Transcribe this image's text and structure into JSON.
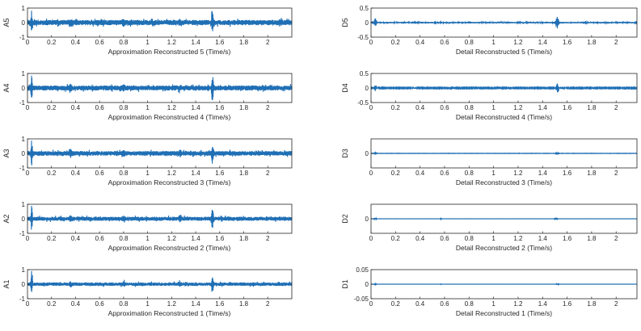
{
  "chart_data": [
    {
      "type": "line",
      "column": "left",
      "ylabel": "A5",
      "xlabel": "Approximation Reconstructed 5   (Time/s)",
      "xlim": [
        0,
        2.2
      ],
      "ylim": [
        -1,
        1
      ],
      "xticks": [
        "0",
        "0.2",
        "0.4",
        "0.6",
        "0.8",
        "1",
        "1.2",
        "1.4",
        "1.6",
        "1.8",
        "2"
      ],
      "yticks": [
        "-1",
        "0",
        "1"
      ]
    },
    {
      "type": "line",
      "column": "left",
      "ylabel": "A4",
      "xlabel": "Approximation Reconstructed 4   (Time/s)",
      "xlim": [
        0,
        2.2
      ],
      "ylim": [
        -1,
        1
      ],
      "xticks": [
        "0",
        "0.2",
        "0.4",
        "0.6",
        "0.8",
        "1",
        "1.2",
        "1.4",
        "1.6",
        "1.8",
        "2"
      ],
      "yticks": [
        "-1",
        "0",
        "1"
      ]
    },
    {
      "type": "line",
      "column": "left",
      "ylabel": "A3",
      "xlabel": "Approximation Reconstructed 3   (Time/s)",
      "xlim": [
        0,
        2.2
      ],
      "ylim": [
        -1,
        1
      ],
      "xticks": [
        "0",
        "0.2",
        "0.4",
        "0.6",
        "0.8",
        "1",
        "1.2",
        "1.4",
        "1.6",
        "1.8",
        "2"
      ],
      "yticks": [
        "-1",
        "0",
        "1"
      ]
    },
    {
      "type": "line",
      "column": "left",
      "ylabel": "A2",
      "xlabel": "Approximation Reconstructed 2   (Time/s)",
      "xlim": [
        0,
        2.2
      ],
      "ylim": [
        -1,
        1
      ],
      "xticks": [
        "0",
        "0.2",
        "0.4",
        "0.6",
        "0.8",
        "1",
        "1.2",
        "1.4",
        "1.6",
        "1.8",
        "2"
      ],
      "yticks": [
        "-1",
        "0",
        "1"
      ]
    },
    {
      "type": "line",
      "column": "left",
      "ylabel": "A1",
      "xlabel": "Approximation Reconstructed 1   (Time/s)",
      "xlim": [
        0,
        2.2
      ],
      "ylim": [
        -1,
        1
      ],
      "xticks": [
        "0",
        "0.2",
        "0.4",
        "0.6",
        "0.8",
        "1",
        "1.2",
        "1.4",
        "1.6",
        "1.8",
        "2"
      ],
      "yticks": [
        "-1",
        "0",
        "1"
      ]
    },
    {
      "type": "line",
      "column": "right",
      "ylabel": "D5",
      "xlabel": "Detail Reconstructed 5   (Time/s)",
      "xlim": [
        0,
        2.17
      ],
      "ylim": [
        -0.5,
        0.5
      ],
      "xticks": [
        "0",
        "0.2",
        "0.4",
        "0.6",
        "0.8",
        "1",
        "1.2",
        "1.4",
        "1.6",
        "1.8",
        "2"
      ],
      "yticks": [
        "-0.5",
        "0",
        "0.5"
      ]
    },
    {
      "type": "line",
      "column": "right",
      "ylabel": "D4",
      "xlabel": "Detail Reconstructed 4   (Time/s)",
      "xlim": [
        0,
        2.17
      ],
      "ylim": [
        -0.5,
        0.5
      ],
      "xticks": [
        "0",
        "0.2",
        "0.4",
        "0.6",
        "0.8",
        "1",
        "1.2",
        "1.4",
        "1.6",
        "1.8",
        "2"
      ],
      "yticks": [
        "-0.5",
        "0",
        "0.5"
      ]
    },
    {
      "type": "line",
      "column": "right",
      "ylabel": "D3",
      "xlabel": "Detail Reconstructed 3   (Time/s)",
      "xlim": [
        0,
        2.17
      ],
      "ylim": [
        -0.1,
        0.1
      ],
      "xticks": [
        "0",
        "0.2",
        "0.4",
        "0.6",
        "0.8",
        "1",
        "1.2",
        "1.4",
        "1.6",
        "1.8",
        "2"
      ],
      "yticks": [
        "0"
      ]
    },
    {
      "type": "line",
      "column": "right",
      "ylabel": "D2",
      "xlabel": "Detail Reconstructed 2   (Time/s)",
      "xlim": [
        0,
        2.17
      ],
      "ylim": [
        -0.1,
        0.1
      ],
      "xticks": [
        "0",
        "0.2",
        "0.4",
        "0.6",
        "0.8",
        "1",
        "1.2",
        "1.4",
        "1.6",
        "1.8",
        "2"
      ],
      "yticks": [
        "0"
      ]
    },
    {
      "type": "line",
      "column": "right",
      "ylabel": "D1",
      "xlabel": "Detail Reconstructed 1   (Time/s)",
      "xlim": [
        0,
        2.17
      ],
      "ylim": [
        -0.05,
        0.05
      ],
      "xticks": [
        "0",
        "0.2",
        "0.4",
        "0.6",
        "0.8",
        "1",
        "1.2",
        "1.4",
        "1.6",
        "1.8",
        "2"
      ],
      "yticks": [
        "0.05",
        "0",
        "-0.05"
      ]
    }
  ],
  "colors": {
    "signal": "#1f6fb5",
    "axis": "#262626"
  }
}
